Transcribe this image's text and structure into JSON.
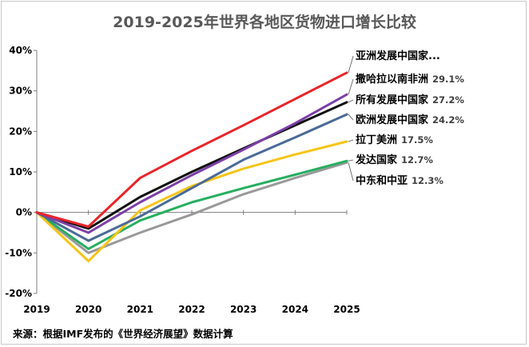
{
  "chart_data": {
    "type": "line",
    "title": "2019-2025年世界各地区货物进口增长比较",
    "xlabel": "",
    "ylabel": "",
    "x": [
      2019,
      2020,
      2021,
      2022,
      2023,
      2024,
      2025
    ],
    "x_tick_labels": [
      "2019",
      "2020",
      "2021",
      "2022",
      "2023",
      "2024",
      "2025"
    ],
    "ylim": [
      -20,
      40
    ],
    "y_ticks": [
      -20,
      -10,
      0,
      10,
      20,
      30,
      40
    ],
    "y_tick_labels": [
      "-20%",
      "-10%",
      "0%",
      "10%",
      "20%",
      "30%",
      "40%"
    ],
    "grid": false,
    "legend": "right",
    "series": [
      {
        "name": "亚洲发展中国家...",
        "value_label": "",
        "color": "#e8252a",
        "values": [
          0,
          -3.5,
          8.5,
          15.2,
          21.5,
          28.0,
          34.5
        ]
      },
      {
        "name": "撒哈拉以南非洲",
        "value_label": "29.1%",
        "color": "#7b3fa6",
        "values": [
          0,
          -5.0,
          2.5,
          9.2,
          15.5,
          22.0,
          29.1
        ]
      },
      {
        "name": "所有发展中国家",
        "value_label": "27.2%",
        "color": "#111111",
        "values": [
          0,
          -4.0,
          3.8,
          10.0,
          15.8,
          21.5,
          27.2
        ]
      },
      {
        "name": "欧洲发展中国家",
        "value_label": "24.2%",
        "color": "#4a6a96",
        "values": [
          0,
          -7.0,
          -1.0,
          6.0,
          13.0,
          18.5,
          24.2
        ]
      },
      {
        "name": "拉丁美洲",
        "value_label": "17.5%",
        "color": "#f5c518",
        "values": [
          0,
          -12.0,
          0.5,
          6.5,
          10.8,
          14.3,
          17.5
        ]
      },
      {
        "name": "发达国家",
        "value_label": "12.7%",
        "color": "#27ae60",
        "values": [
          0,
          -9.0,
          -2.0,
          2.5,
          6.0,
          9.3,
          12.7
        ]
      },
      {
        "name": "中东和中亚",
        "value_label": "12.3%",
        "color": "#999999",
        "values": [
          0,
          -10.0,
          -5.0,
          -0.5,
          4.5,
          8.5,
          12.3
        ]
      }
    ],
    "source": "来源：根据IMF发布的《世界经济展望》数据计算"
  }
}
